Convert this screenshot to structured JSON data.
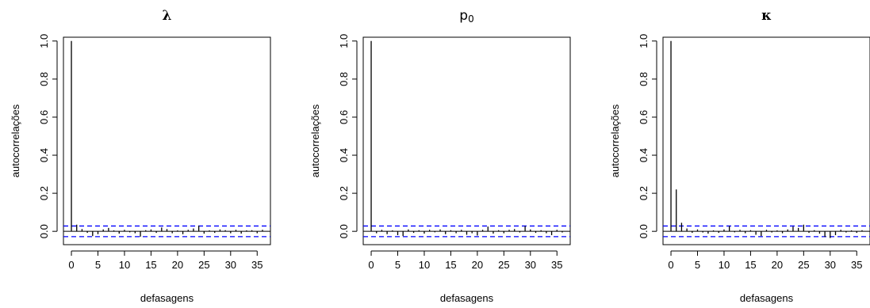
{
  "chart_data": [
    {
      "type": "bar",
      "title": "λ",
      "xlabel": "defasagens",
      "ylabel": "autocorrelações",
      "xlim": [
        -1.5,
        37.5
      ],
      "ylim": [
        -0.07,
        1.02
      ],
      "xticks": [
        0,
        5,
        10,
        15,
        20,
        25,
        30,
        35
      ],
      "yticks": [
        0.0,
        0.2,
        0.4,
        0.6,
        0.8,
        1.0
      ],
      "yticklabels": [
        "0.0",
        "0.2",
        "0.4",
        "0.6",
        "0.8",
        "1.0"
      ],
      "confidence_band": 0.028,
      "lags": [
        0,
        1,
        2,
        3,
        4,
        5,
        6,
        7,
        8,
        9,
        10,
        11,
        12,
        13,
        14,
        15,
        16,
        17,
        18,
        19,
        20,
        21,
        22,
        23,
        24,
        25,
        26,
        27,
        28,
        29,
        30,
        31,
        32,
        33,
        34,
        35,
        36
      ],
      "values": [
        1.0,
        0.035,
        0.012,
        -0.008,
        -0.025,
        -0.015,
        0.01,
        0.018,
        0.005,
        -0.012,
        0.008,
        -0.005,
        -0.01,
        -0.028,
        0.006,
        0.01,
        -0.008,
        0.02,
        0.012,
        -0.01,
        0.005,
        -0.015,
        0.008,
        0.015,
        0.03,
        -0.012,
        0.005,
        -0.008,
        0.01,
        0.006,
        -0.01,
        0.008,
        -0.012,
        0.005,
        0.006,
        -0.01,
        0.008
      ]
    },
    {
      "type": "bar",
      "title": "p",
      "title_subscript": "0",
      "xlabel": "defasagens",
      "ylabel": "autocorrelações",
      "xlim": [
        -1.5,
        37.5
      ],
      "ylim": [
        -0.07,
        1.02
      ],
      "xticks": [
        0,
        5,
        10,
        15,
        20,
        25,
        30,
        35
      ],
      "yticks": [
        0.0,
        0.2,
        0.4,
        0.6,
        0.8,
        1.0
      ],
      "yticklabels": [
        "0.0",
        "0.2",
        "0.4",
        "0.6",
        "0.8",
        "1.0"
      ],
      "confidence_band": 0.028,
      "lags": [
        0,
        1,
        2,
        3,
        4,
        5,
        6,
        7,
        8,
        9,
        10,
        11,
        12,
        13,
        14,
        15,
        16,
        17,
        18,
        19,
        20,
        21,
        22,
        23,
        24,
        25,
        26,
        27,
        28,
        29,
        30,
        31,
        32,
        33,
        34,
        35,
        36
      ],
      "values": [
        1.0,
        -0.01,
        0.008,
        -0.015,
        0.005,
        -0.02,
        -0.025,
        0.01,
        -0.008,
        0.006,
        -0.012,
        0.008,
        -0.005,
        0.01,
        -0.015,
        0.006,
        -0.01,
        0.008,
        -0.018,
        -0.01,
        -0.022,
        0.008,
        0.025,
        -0.012,
        0.006,
        -0.01,
        0.008,
        0.012,
        -0.006,
        0.028,
        0.01,
        -0.008,
        0.006,
        -0.01,
        -0.02,
        0.008,
        -0.006
      ]
    },
    {
      "type": "bar",
      "title": "κ",
      "xlabel": "defasagens",
      "ylabel": "autocorrelações",
      "xlim": [
        -1.5,
        37.5
      ],
      "ylim": [
        -0.07,
        1.02
      ],
      "xticks": [
        0,
        5,
        10,
        15,
        20,
        25,
        30,
        35
      ],
      "yticks": [
        0.0,
        0.2,
        0.4,
        0.6,
        0.8,
        1.0
      ],
      "yticklabels": [
        "0.0",
        "0.2",
        "0.4",
        "0.6",
        "0.8",
        "1.0"
      ],
      "confidence_band": 0.028,
      "lags": [
        0,
        1,
        2,
        3,
        4,
        5,
        6,
        7,
        8,
        9,
        10,
        11,
        12,
        13,
        14,
        15,
        16,
        17,
        18,
        19,
        20,
        21,
        22,
        23,
        24,
        25,
        26,
        27,
        28,
        29,
        30,
        31,
        32,
        33,
        34,
        35,
        36
      ],
      "values": [
        1.0,
        0.22,
        0.045,
        0.015,
        -0.008,
        0.01,
        -0.006,
        -0.012,
        0.005,
        -0.008,
        0.01,
        0.028,
        -0.005,
        0.008,
        -0.01,
        0.006,
        -0.018,
        -0.025,
        0.008,
        -0.006,
        0.005,
        -0.01,
        0.01,
        0.025,
        0.018,
        0.035,
        -0.008,
        0.006,
        -0.012,
        -0.03,
        -0.035,
        -0.02,
        0.008,
        -0.006,
        0.005,
        -0.008,
        0.006
      ]
    }
  ],
  "colors": {
    "bars": "#000000",
    "confidence_band": "#0000ff",
    "zero_line": "#000000",
    "frame": "#000000"
  }
}
